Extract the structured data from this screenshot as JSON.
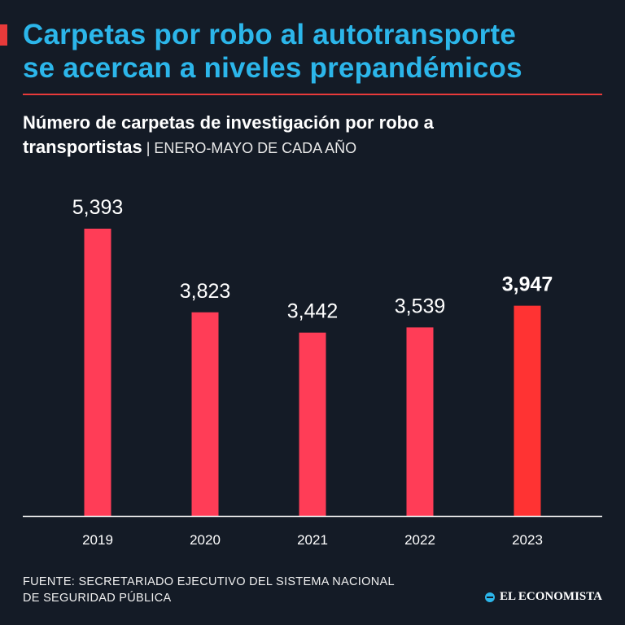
{
  "headline": {
    "line1": "Carpetas por robo al autotransporte",
    "line2": "se acercan a niveles prepandémicos"
  },
  "subtitle": {
    "line1": "Número de carpetas de investigación por robo a",
    "line2_bold": "transportistas",
    "line2_light": " | ENERO-MAYO DE CADA AÑO"
  },
  "source": {
    "line1": "FUENTE: SECRETARIADO EJECUTIVO DEL SISTEMA NACIONAL",
    "line2": "DE SEGURIDAD PÚBLICA"
  },
  "brand": {
    "name": "EL ECONOMISTA"
  },
  "colors": {
    "background": "#141b26",
    "headline": "#2cb6ea",
    "bar": "#ff3d57",
    "bar_highlight": "#ff3333",
    "axis": "#ffffff"
  },
  "chart_data": {
    "type": "bar",
    "title": "Número de carpetas de investigación por robo a transportistas",
    "subtitle": "ENERO-MAYO DE CADA AÑO",
    "categories": [
      "2019",
      "2020",
      "2021",
      "2022",
      "2023"
    ],
    "values": [
      5393,
      3823,
      3442,
      3539,
      3947
    ],
    "labels": [
      "5,393",
      "3,823",
      "3,442",
      "3,539",
      "3,947"
    ],
    "highlight_index": 4,
    "xlabel": "",
    "ylabel": "",
    "ylim": [
      0,
      6000
    ],
    "grid": false
  }
}
